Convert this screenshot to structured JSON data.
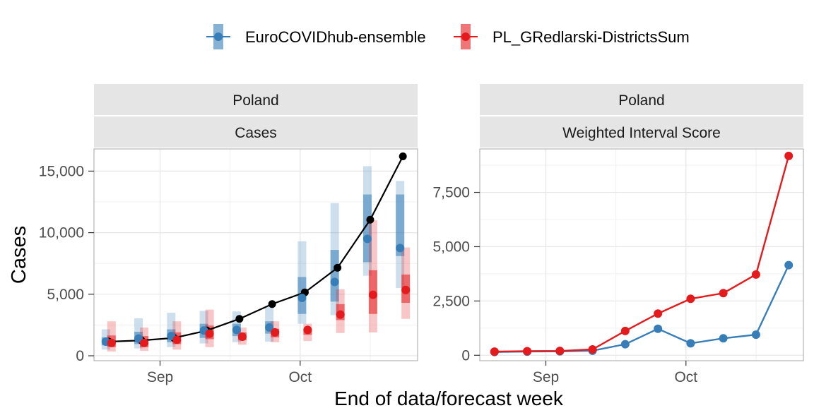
{
  "legend": {
    "items": [
      {
        "label": "EuroCOVIDhub-ensemble",
        "color": "#377EB8"
      },
      {
        "label": "PL_GRedlarski-DistrictsSum",
        "color": "#E41A1C"
      }
    ]
  },
  "axis_titles": {
    "y": "Cases",
    "x": "End of data/forecast week"
  },
  "colors": {
    "ensemble": "#377EB8",
    "team": "#E41A1C",
    "observed": "#000000",
    "strip_fill": "#E5E5E5",
    "grid": "#E6E6E6"
  },
  "chart_data": [
    {
      "type": "line",
      "strip_labels": [
        "Poland",
        "Cases"
      ],
      "x_dates": [
        "2021-08-21",
        "2021-08-28",
        "2021-09-04",
        "2021-09-11",
        "2021-09-18",
        "2021-09-25",
        "2021-10-02",
        "2021-10-09",
        "2021-10-16",
        "2021-10-23"
      ],
      "x_ticks": [
        {
          "date": "2021-09-01",
          "label": "Sep"
        },
        {
          "date": "2021-10-01",
          "label": "Oct"
        }
      ],
      "ylim": [
        -400,
        16800
      ],
      "y_ticks": [
        {
          "value": 0,
          "label": "0"
        },
        {
          "value": 5000,
          "label": "5,000"
        },
        {
          "value": 10000,
          "label": "10,000"
        },
        {
          "value": 15000,
          "label": "15,000"
        }
      ],
      "observed": [
        1150,
        1250,
        1450,
        2050,
        3000,
        4200,
        5150,
        7150,
        11050,
        16200
      ],
      "forecasts": [
        {
          "model": "EuroCOVIDhub-ensemble",
          "points": [
            {
              "date": "2021-08-21",
              "median": 1150,
              "inner": [
                850,
                1500
              ],
              "outer": [
                500,
                2150
              ]
            },
            {
              "date": "2021-08-28",
              "median": 1400,
              "inner": [
                950,
                1950
              ],
              "outer": [
                600,
                3050
              ]
            },
            {
              "date": "2021-09-04",
              "median": 1600,
              "inner": [
                1100,
                2150
              ],
              "outer": [
                700,
                3500
              ]
            },
            {
              "date": "2021-09-11",
              "median": 2050,
              "inner": [
                1450,
                2600
              ],
              "outer": [
                1000,
                3650
              ]
            },
            {
              "date": "2021-09-18",
              "median": 2100,
              "inner": [
                1600,
                2600
              ],
              "outer": [
                1100,
                3600
              ]
            },
            {
              "date": "2021-09-25",
              "median": 2300,
              "inner": [
                1800,
                2800
              ],
              "outer": [
                1150,
                3950
              ]
            },
            {
              "date": "2021-10-02",
              "median": 4700,
              "inner": [
                3400,
                6400
              ],
              "outer": [
                2600,
                9300
              ]
            },
            {
              "date": "2021-10-09",
              "median": 6000,
              "inner": [
                4400,
                8600
              ],
              "outer": [
                3300,
                12400
              ]
            },
            {
              "date": "2021-10-16",
              "median": 9500,
              "inner": [
                7600,
                13100
              ],
              "outer": [
                6500,
                15400
              ]
            },
            {
              "date": "2021-10-23",
              "median": 8750,
              "inner": [
                8100,
                13100
              ],
              "outer": [
                5500,
                14200
              ]
            }
          ]
        },
        {
          "model": "PL_GRedlarski-DistrictsSum",
          "points": [
            {
              "date": "2021-08-21",
              "median": 1050,
              "inner": [
                700,
                1650
              ],
              "outer": [
                350,
                2800
              ]
            },
            {
              "date": "2021-08-28",
              "median": 1050,
              "inner": [
                700,
                1600
              ],
              "outer": [
                400,
                2300
              ]
            },
            {
              "date": "2021-09-04",
              "median": 1300,
              "inner": [
                950,
                1900
              ],
              "outer": [
                500,
                2800
              ]
            },
            {
              "date": "2021-09-11",
              "median": 1800,
              "inner": [
                1350,
                2450
              ],
              "outer": [
                700,
                3750
              ]
            },
            {
              "date": "2021-09-18",
              "median": 1550,
              "inner": [
                1250,
                1900
              ],
              "outer": [
                900,
                2300
              ]
            },
            {
              "date": "2021-09-25",
              "median": 1900,
              "inner": [
                1500,
                2200
              ],
              "outer": [
                1100,
                2800
              ]
            },
            {
              "date": "2021-10-02",
              "median": 2100,
              "inner": [
                1700,
                2200
              ],
              "outer": [
                1200,
                2600
              ]
            },
            {
              "date": "2021-10-09",
              "median": 3350,
              "inner": [
                2900,
                4200
              ],
              "outer": [
                1850,
                5400
              ]
            },
            {
              "date": "2021-10-16",
              "median": 4950,
              "inner": [
                3400,
                6950
              ],
              "outer": [
                1900,
                11000
              ]
            },
            {
              "date": "2021-10-23",
              "median": 5350,
              "inner": [
                4300,
                6600
              ],
              "outer": [
                3000,
                8800
              ]
            }
          ]
        }
      ]
    },
    {
      "type": "line",
      "strip_labels": [
        "Poland",
        "Weighted Interval Score"
      ],
      "x_dates": [
        "2021-08-21",
        "2021-08-28",
        "2021-09-04",
        "2021-09-11",
        "2021-09-18",
        "2021-09-25",
        "2021-10-02",
        "2021-10-09",
        "2021-10-16",
        "2021-10-23"
      ],
      "x_ticks": [
        {
          "date": "2021-09-01",
          "label": "Sep"
        },
        {
          "date": "2021-10-01",
          "label": "Oct"
        }
      ],
      "ylim": [
        -250,
        9500
      ],
      "y_ticks": [
        {
          "value": 0,
          "label": "0"
        },
        {
          "value": 2500,
          "label": "2,500"
        },
        {
          "value": 5000,
          "label": "5,000"
        },
        {
          "value": 7500,
          "label": "7,500"
        }
      ],
      "series": [
        {
          "name": "EuroCOVIDhub-ensemble",
          "values": [
            150,
            170,
            180,
            210,
            510,
            1220,
            550,
            780,
            950,
            4150
          ]
        },
        {
          "name": "PL_GRedlarski-DistrictsSum",
          "values": [
            170,
            190,
            200,
            270,
            1120,
            1920,
            2600,
            2860,
            3720,
            9180
          ]
        }
      ]
    }
  ]
}
